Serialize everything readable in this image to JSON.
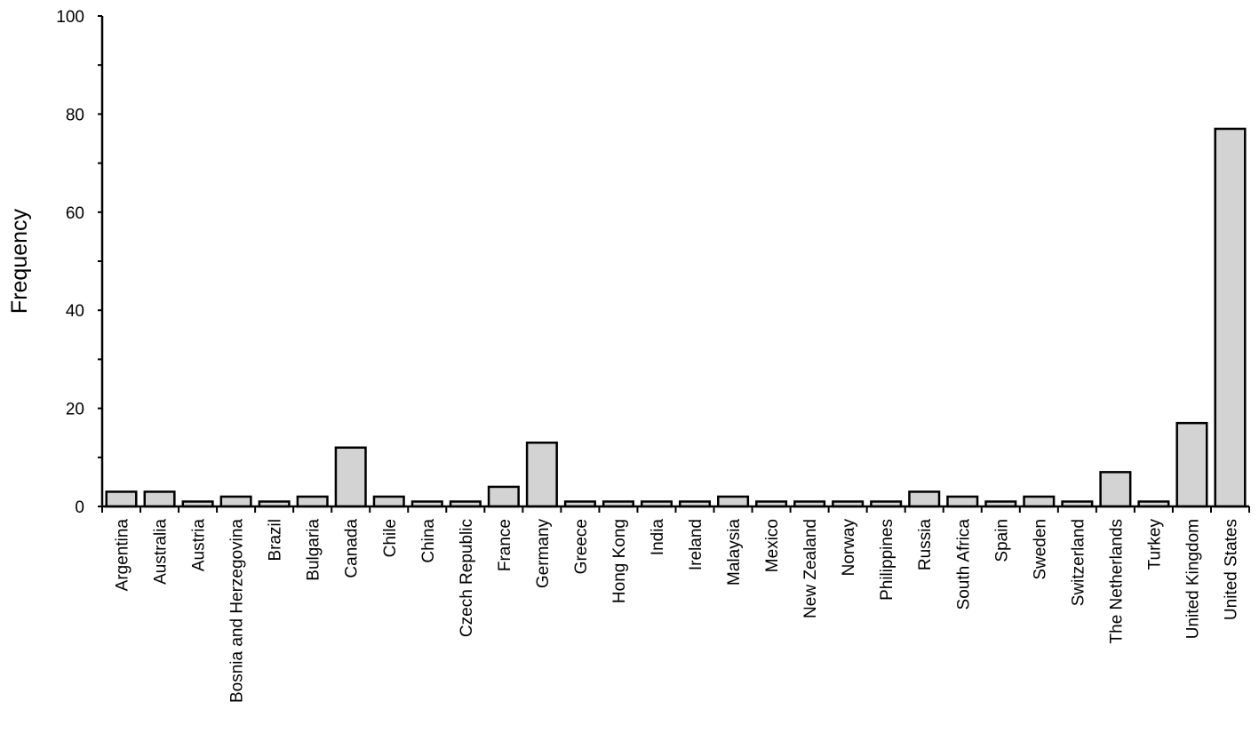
{
  "chart_data": {
    "type": "bar",
    "title": "",
    "xlabel": "",
    "ylabel": "Frequency",
    "ylim": [
      0,
      100
    ],
    "yticks": [
      0,
      20,
      40,
      60,
      80,
      100
    ],
    "grid": false,
    "legend": "none",
    "bar_color": "#d3d3d3",
    "categories": [
      "Argentina",
      "Australia",
      "Austria",
      "Bosnia and Herzegovina",
      "Brazil",
      "Bulgaria",
      "Canada",
      "Chile",
      "China",
      "Czech Republic",
      "France",
      "Germany",
      "Greece",
      "Hong Kong",
      "India",
      "Ireland",
      "Malaysia",
      "Mexico",
      "New Zealand",
      "Norway",
      "Philippines",
      "Russia",
      "South Africa",
      "Spain",
      "Sweden",
      "Switzerland",
      "The Netherlands",
      "Turkey",
      "United Kingdom",
      "United States"
    ],
    "values": [
      3,
      3,
      1,
      2,
      1,
      2,
      12,
      2,
      1,
      1,
      4,
      13,
      1,
      1,
      1,
      1,
      2,
      1,
      1,
      1,
      1,
      3,
      2,
      1,
      2,
      1,
      7,
      1,
      17,
      77
    ]
  }
}
